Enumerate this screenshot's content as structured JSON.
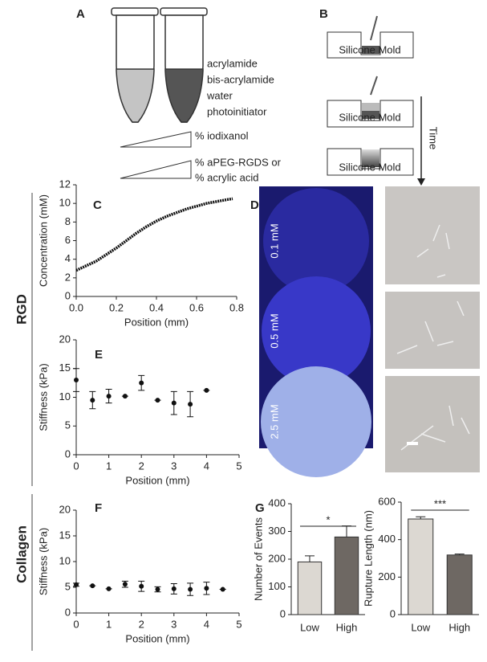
{
  "panel_letters": [
    "A",
    "B",
    "C",
    "D",
    "E",
    "F",
    "G"
  ],
  "row_labels": [
    "RGD",
    "Collagen"
  ],
  "panel_a": {
    "lines": [
      "acrylamide",
      "bis-acrylamide",
      "water",
      "photoinitiator"
    ],
    "gradients": [
      "% iodixanol",
      "% aPEG-RGDS or",
      "% acrylic acid"
    ]
  },
  "panel_b": {
    "molds": [
      "Silicone Mold",
      "Silicone Mold",
      "Silicone Mold"
    ],
    "arrow": "Time"
  },
  "panel_d": {
    "concentrations": [
      "0.1  mM",
      "0.5 mM",
      "2.5 mM"
    ]
  },
  "chart_data": [
    {
      "type": "line",
      "xlabel": "Position (mm)",
      "ylabel": "Concentration (mM)",
      "x": [
        0,
        0.05,
        0.1,
        0.15,
        0.2,
        0.25,
        0.3,
        0.35,
        0.4,
        0.45,
        0.5,
        0.55,
        0.6,
        0.65,
        0.7,
        0.75,
        0.78
      ],
      "series": [
        {
          "color": "#111111",
          "values": [
            2.8,
            3.3,
            3.8,
            4.5,
            5.2,
            6.0,
            6.8,
            7.5,
            8.1,
            8.6,
            9.0,
            9.4,
            9.7,
            10.0,
            10.2,
            10.4,
            10.5
          ]
        }
      ],
      "xlim": [
        0,
        0.8
      ],
      "ylim": [
        0,
        12
      ],
      "xticks": [
        {
          "value": 0,
          "label": "0.0"
        },
        0.2,
        0.4,
        0.6,
        0.8
      ],
      "yticks": [
        0,
        2,
        4,
        6,
        8,
        10,
        12
      ]
    },
    {
      "type": "scatter",
      "xlabel": "Position (mm)",
      "ylabel": "Stiffness (kPa)",
      "color": "#111111",
      "x": [
        0,
        0.5,
        1,
        1.5,
        2,
        2.5,
        3,
        3.5,
        4
      ],
      "values": [
        13,
        9.5,
        10.2,
        10.2,
        12.5,
        9.5,
        9,
        8.8,
        11.2
      ],
      "errors": [
        2,
        1.5,
        1.2,
        0,
        1.3,
        0,
        2,
        2.2,
        0
      ],
      "xlim": [
        0,
        5
      ],
      "ylim": [
        0,
        20
      ],
      "xticks": [
        0,
        1,
        2,
        3,
        4,
        5
      ],
      "yticks": [
        0,
        5,
        10,
        15,
        20
      ]
    },
    {
      "type": "scatter",
      "xlabel": "Position (mm)",
      "ylabel": "Stiffness (kPa)",
      "color": "#111111",
      "x": [
        0,
        0.5,
        1,
        1.5,
        2,
        2.5,
        3,
        3.5,
        4,
        4.5
      ],
      "values": [
        5.5,
        5.3,
        4.7,
        5.6,
        5.2,
        4.6,
        4.7,
        4.6,
        4.8,
        4.6
      ],
      "errors": [
        0.3,
        0,
        0,
        0.6,
        1,
        0.5,
        1,
        1.2,
        1.2,
        0
      ],
      "xlim": [
        0,
        5
      ],
      "ylim": [
        0,
        20
      ],
      "xticks": [
        0,
        1,
        2,
        3,
        4,
        5
      ],
      "yticks": [
        0,
        5,
        10,
        15,
        20
      ]
    },
    {
      "type": "bar",
      "ylabel": "Number of Events",
      "categories": [
        "Low",
        "High"
      ],
      "values": [
        190,
        280
      ],
      "errors": [
        22,
        40
      ],
      "colors": [
        "#dcd8d2",
        "#6e6863"
      ],
      "annotation": "*",
      "ylim": [
        0,
        400
      ],
      "yticks": [
        0,
        100,
        200,
        300,
        400
      ]
    },
    {
      "type": "bar",
      "ylabel": "Rupture Length (nm)",
      "categories": [
        "Low",
        "High"
      ],
      "values": [
        510,
        318
      ],
      "errors": [
        12,
        5
      ],
      "colors": [
        "#dcd8d2",
        "#6e6863"
      ],
      "annotation": "***",
      "ylim": [
        0,
        600
      ],
      "yticks": [
        0,
        200,
        400,
        600
      ]
    }
  ]
}
